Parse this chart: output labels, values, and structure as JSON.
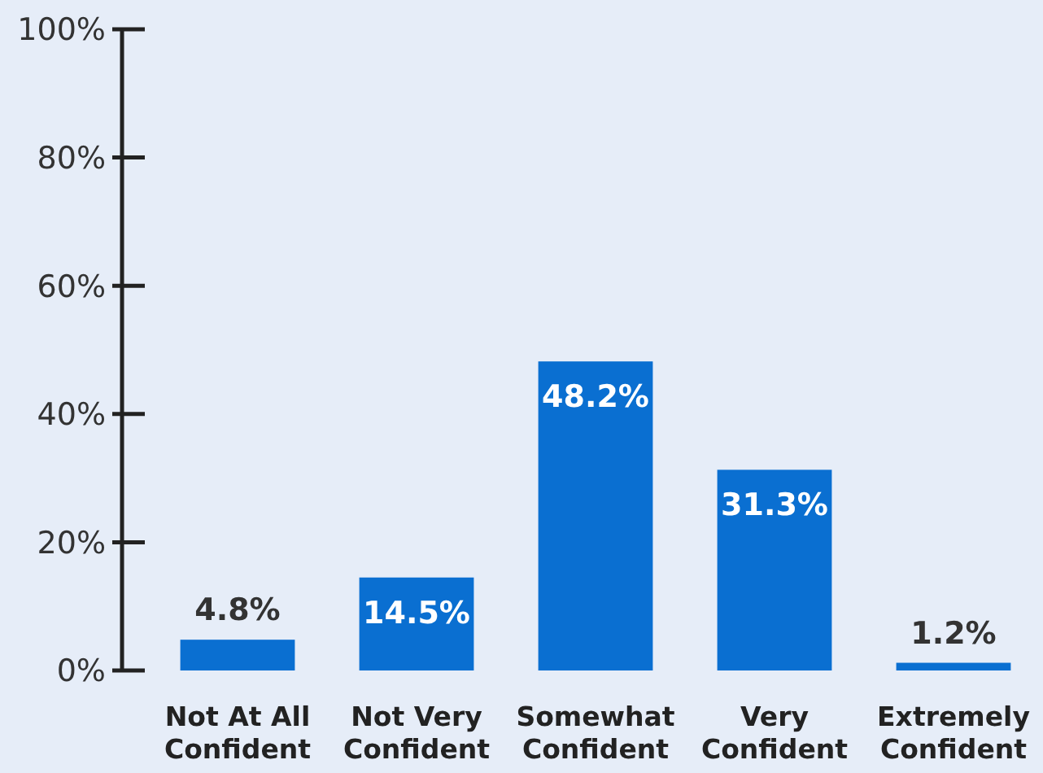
{
  "chart_data": {
    "type": "bar",
    "categories": [
      "Not At All Confident",
      "Not Very Confident",
      "Somewhat Confident",
      "Very Confident",
      "Extremely Confident"
    ],
    "values": [
      4.8,
      14.5,
      48.2,
      31.3,
      1.2
    ],
    "value_labels": [
      "4.8%",
      "14.5%",
      "48.2%",
      "31.3%",
      "1.2%"
    ],
    "color": "#0a6fd1",
    "ylim": [
      0,
      100
    ],
    "yticks": [
      {
        "value": 0,
        "label": "0%"
      },
      {
        "value": 20,
        "label": "20%"
      },
      {
        "value": 40,
        "label": "40%"
      },
      {
        "value": 60,
        "label": "60%"
      },
      {
        "value": 80,
        "label": "80%"
      },
      {
        "value": 100,
        "label": "100%"
      }
    ],
    "grid": false
  }
}
